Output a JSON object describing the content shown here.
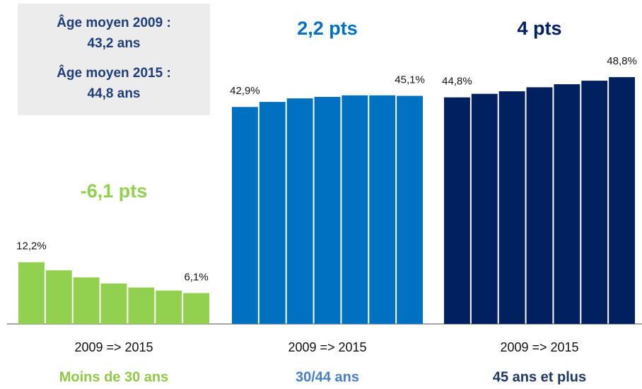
{
  "chart_data": {
    "type": "bar",
    "ylim": [
      0,
      50
    ],
    "info_box": [
      "Âge moyen 2009 :",
      "43,2 ans",
      "Âge moyen 2015 :",
      "44,8 ans"
    ],
    "groups": [
      {
        "name": "Moins de 30 ans",
        "color": "#92d050",
        "name_color": "#92c84a",
        "period": "2009 => 2015",
        "annotation": "-6,1 pts",
        "values": [
          12.2,
          10.6,
          9.2,
          8.0,
          7.2,
          6.6,
          6.1
        ],
        "value_labels": [
          "12,2%",
          null,
          null,
          null,
          null,
          null,
          "6,1%"
        ]
      },
      {
        "name": "30/44 ans",
        "color": "#0070c0",
        "name_color": "#4a7fc1",
        "period": "2009 => 2015",
        "annotation": "2,2 pts",
        "values": [
          42.9,
          43.9,
          44.6,
          44.9,
          45.2,
          45.2,
          45.1
        ],
        "value_labels": [
          "42,9%",
          null,
          null,
          null,
          null,
          null,
          "45,1%"
        ]
      },
      {
        "name": "45 ans et plus",
        "color": "#002060",
        "name_color": "#1f3864",
        "period": "2009 => 2015",
        "annotation": "4 pts",
        "values": [
          44.8,
          45.5,
          46.0,
          46.8,
          47.4,
          48.1,
          48.8
        ],
        "value_labels": [
          "44,8%",
          null,
          null,
          null,
          null,
          null,
          "48,8%"
        ]
      }
    ]
  }
}
